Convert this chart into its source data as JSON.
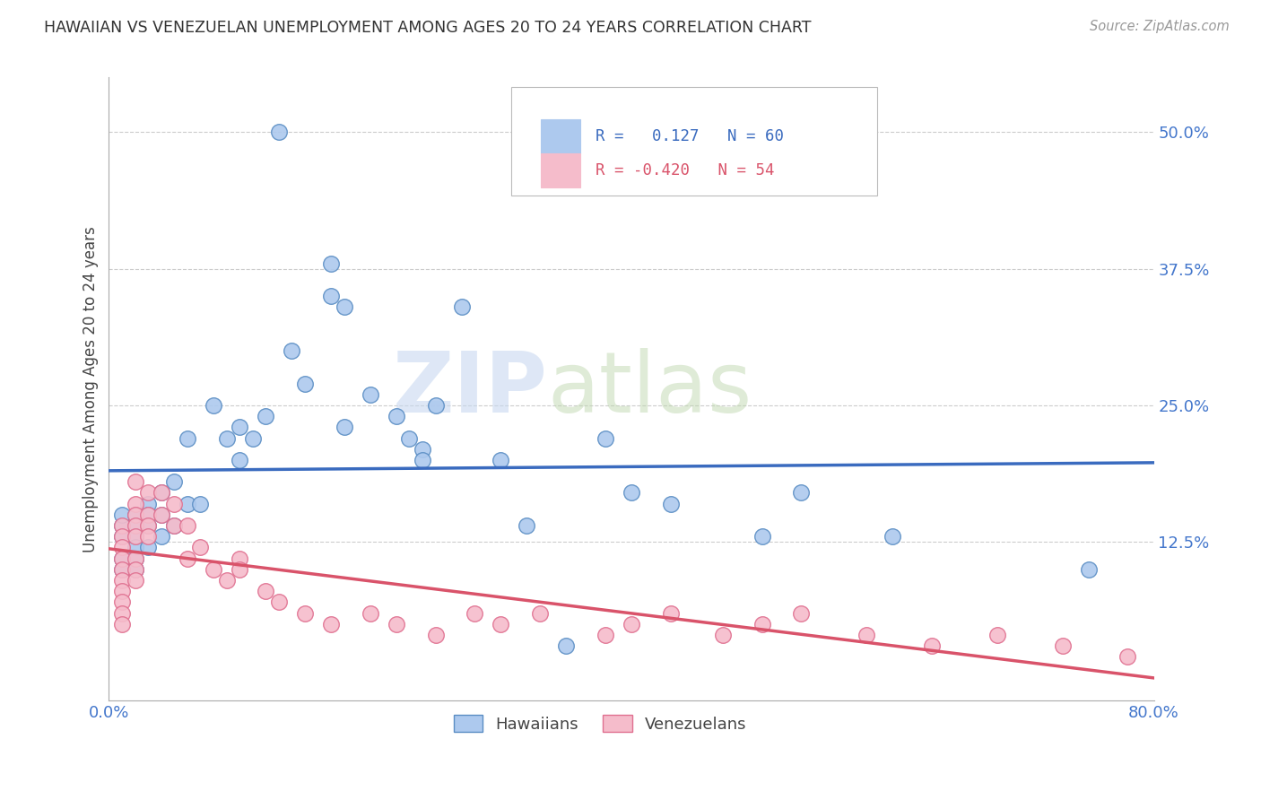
{
  "title": "HAWAIIAN VS VENEZUELAN UNEMPLOYMENT AMONG AGES 20 TO 24 YEARS CORRELATION CHART",
  "source": "Source: ZipAtlas.com",
  "ylabel": "Unemployment Among Ages 20 to 24 years",
  "xlim": [
    0.0,
    0.8
  ],
  "ylim": [
    -0.02,
    0.55
  ],
  "yticks": [
    0.125,
    0.25,
    0.375,
    0.5
  ],
  "ytick_labels": [
    "12.5%",
    "25.0%",
    "37.5%",
    "50.0%"
  ],
  "xticks": [
    0.0,
    0.2,
    0.4,
    0.6,
    0.8
  ],
  "xtick_labels": [
    "0.0%",
    "",
    "",
    "",
    "80.0%"
  ],
  "background_color": "#ffffff",
  "grid_color": "#cccccc",
  "hawaiian_color": "#adc9ee",
  "venezuelan_color": "#f5bccb",
  "hawaiian_edge": "#5b8ec4",
  "venezuelan_edge": "#e07090",
  "hawaiian_line_color": "#3a6bbf",
  "venezuelan_line_color": "#d9536a",
  "legend_bottom_label_1": "Hawaiians",
  "legend_bottom_label_2": "Venezuelans",
  "watermark_zip": "ZIP",
  "watermark_atlas": "atlas",
  "hawaiian_x": [
    0.01,
    0.01,
    0.01,
    0.01,
    0.01,
    0.02,
    0.02,
    0.02,
    0.02,
    0.02,
    0.02,
    0.03,
    0.03,
    0.03,
    0.03,
    0.04,
    0.04,
    0.04,
    0.05,
    0.05,
    0.06,
    0.06,
    0.07,
    0.08,
    0.09,
    0.1,
    0.1,
    0.11,
    0.12,
    0.13,
    0.14,
    0.15,
    0.17,
    0.17,
    0.18,
    0.18,
    0.2,
    0.22,
    0.23,
    0.24,
    0.24,
    0.25,
    0.27,
    0.3,
    0.32,
    0.35,
    0.38,
    0.4,
    0.43,
    0.5,
    0.53,
    0.6,
    0.75
  ],
  "hawaiian_y": [
    0.13,
    0.14,
    0.15,
    0.11,
    0.1,
    0.15,
    0.14,
    0.13,
    0.12,
    0.11,
    0.1,
    0.16,
    0.15,
    0.14,
    0.12,
    0.17,
    0.15,
    0.13,
    0.18,
    0.14,
    0.22,
    0.16,
    0.16,
    0.25,
    0.22,
    0.23,
    0.2,
    0.22,
    0.24,
    0.5,
    0.3,
    0.27,
    0.38,
    0.35,
    0.34,
    0.23,
    0.26,
    0.24,
    0.22,
    0.21,
    0.2,
    0.25,
    0.34,
    0.2,
    0.14,
    0.03,
    0.22,
    0.17,
    0.16,
    0.13,
    0.17,
    0.13,
    0.1
  ],
  "venezuelan_x": [
    0.01,
    0.01,
    0.01,
    0.01,
    0.01,
    0.01,
    0.01,
    0.01,
    0.01,
    0.01,
    0.02,
    0.02,
    0.02,
    0.02,
    0.02,
    0.02,
    0.02,
    0.02,
    0.03,
    0.03,
    0.03,
    0.03,
    0.04,
    0.04,
    0.05,
    0.05,
    0.06,
    0.06,
    0.07,
    0.08,
    0.09,
    0.1,
    0.1,
    0.12,
    0.13,
    0.15,
    0.17,
    0.2,
    0.22,
    0.25,
    0.28,
    0.3,
    0.33,
    0.38,
    0.4,
    0.43,
    0.47,
    0.5,
    0.53,
    0.58,
    0.63,
    0.68,
    0.73,
    0.78
  ],
  "venezuelan_y": [
    0.14,
    0.13,
    0.12,
    0.11,
    0.1,
    0.09,
    0.08,
    0.07,
    0.06,
    0.05,
    0.18,
    0.16,
    0.15,
    0.14,
    0.13,
    0.11,
    0.1,
    0.09,
    0.17,
    0.15,
    0.14,
    0.13,
    0.17,
    0.15,
    0.16,
    0.14,
    0.14,
    0.11,
    0.12,
    0.1,
    0.09,
    0.11,
    0.1,
    0.08,
    0.07,
    0.06,
    0.05,
    0.06,
    0.05,
    0.04,
    0.06,
    0.05,
    0.06,
    0.04,
    0.05,
    0.06,
    0.04,
    0.05,
    0.06,
    0.04,
    0.03,
    0.04,
    0.03,
    0.02
  ]
}
